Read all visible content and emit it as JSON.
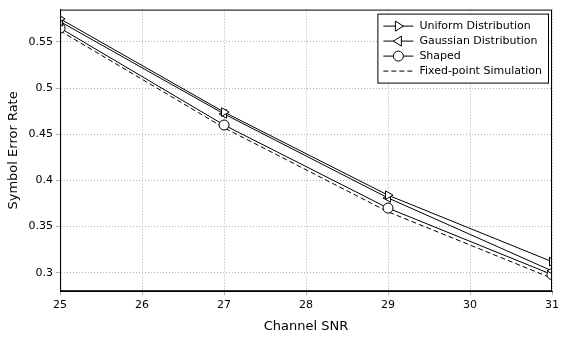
{
  "chart_data": {
    "type": "line",
    "x_label": "Channel SNR",
    "y_label": "Symbol Error Rate",
    "x": [
      25,
      27,
      29,
      31
    ],
    "series": [
      {
        "name": "Uniform Distribution",
        "color": "#000000",
        "marker": "triangle-right",
        "line_style": "solid",
        "values": [
          0.575,
          0.474,
          0.384,
          0.312
        ]
      },
      {
        "name": "Gaussian Distribution",
        "color": "#000000",
        "marker": "triangle-left",
        "line_style": "solid",
        "values": [
          0.572,
          0.472,
          0.381,
          0.302
        ]
      },
      {
        "name": "Shaped",
        "color": "#000000",
        "marker": "circle",
        "line_style": "solid",
        "values": [
          0.565,
          0.46,
          0.37,
          0.298
        ]
      },
      {
        "name": "Fixed-point Simulation",
        "color": "#000000",
        "marker": "none",
        "line_style": "dashed",
        "values": [
          0.562,
          0.457,
          0.366,
          0.294
        ]
      }
    ],
    "xlim": [
      25,
      31
    ],
    "xticks": [
      25,
      26,
      27,
      28,
      29,
      30,
      31
    ],
    "ylim": [
      0.28,
      0.585
    ],
    "yticks": [
      0.3,
      0.35,
      0.4,
      0.45,
      0.5,
      0.55
    ],
    "grid": true,
    "legend": "top-right"
  }
}
